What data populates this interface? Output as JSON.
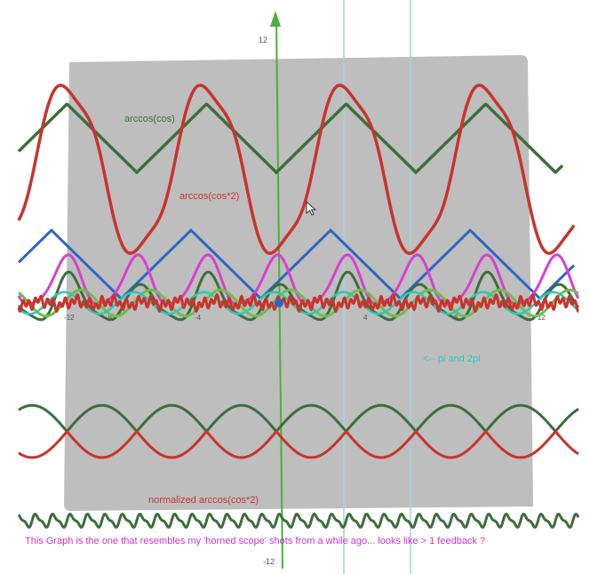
{
  "chart_data": {
    "type": "line",
    "title": "",
    "xlabel": "",
    "ylabel": "",
    "ylim": [
      -12,
      12
    ],
    "y_tick_labels": [
      "12",
      "-12"
    ],
    "x_tick_labels": [
      "-12",
      "-8",
      "-4",
      "0",
      "4",
      "8",
      "12"
    ],
    "grid": false,
    "series": [
      {
        "name": "arccos(cos)",
        "color": "#3c6e3c",
        "formula": "arccos(cos(x)) + 6"
      },
      {
        "name": "arccos(cos*2)",
        "color": "#c8342c",
        "formula": "2.4*arccos(2*cos(x)/(1+cos^2 x)) + 3.5"
      },
      {
        "name": "",
        "color": "#2d65c4",
        "formula": "arccos(cos(x+1)) + 0.5"
      },
      {
        "name": "",
        "color": "#d93fd0",
        "formula": "bumps near y = 1.5"
      },
      {
        "name": "",
        "color": "#3c6e3c",
        "formula": "bumps near y = 1.5"
      },
      {
        "name": "",
        "color": "#6cc04a",
        "formula": "sin(2x) near y = 0"
      },
      {
        "name": "",
        "color": "#2ec7b5",
        "formula": "sin(2x + 1) near y = 0"
      },
      {
        "name": "",
        "color": "#c8342c",
        "formula": "noisy loops near y = 0"
      },
      {
        "name": "",
        "color": "#3c6e3c",
        "formula": "|sin x| near y = -5.5"
      },
      {
        "name": "normalized  arccos(cos*2)",
        "color": "#c8342c",
        "formula": "|sin x| near y = -6.5"
      },
      {
        "name": "",
        "color": "#3c6e3c",
        "formula": "sin(8x) near y = -11"
      }
    ]
  },
  "annotations": {
    "arccos_cos": "arccos(cos)",
    "arccos_cos2": "arccos(cos*2)",
    "normalized": "normalized  arccos(cos*2)",
    "pi_note": "<-- pi and 2pi",
    "caption": "This Graph is the one that resembles my 'horned scope' shots from a while ago...  looks like > 1 feedback ?"
  },
  "colors": {
    "panel": "#b9b9b9",
    "axis": "#4caf3c",
    "cyan_guides": "#9fd6dc",
    "magenta_text": "#cc33cc",
    "teal_text": "#2ec7b5"
  },
  "icons": {
    "cursor": "mouse-pointer-icon"
  }
}
